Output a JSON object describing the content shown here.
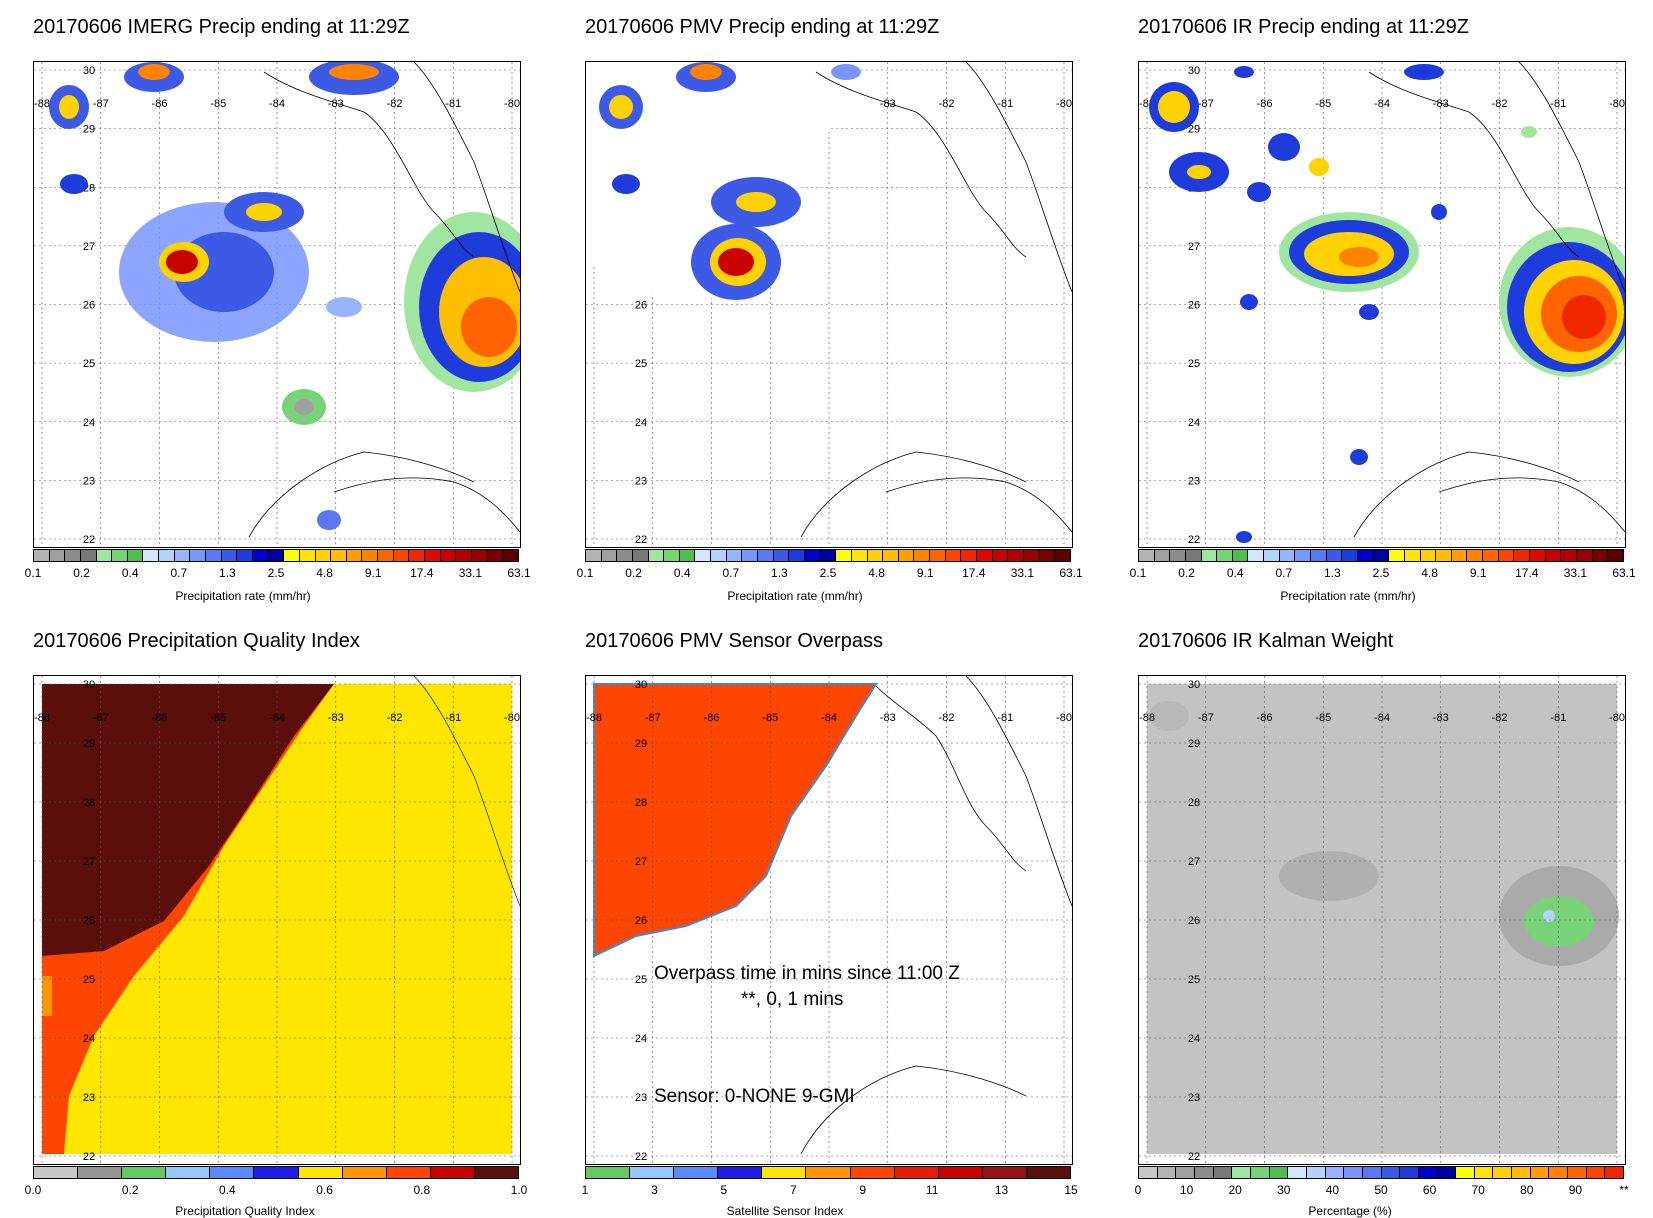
{
  "titles": {
    "p1": "20170606 IMERG Precip ending at 11:29Z",
    "p2": "20170606 PMV Precip ending at 11:29Z",
    "p3": "20170606 IR Precip ending at 11:29Z",
    "p4": "20170606 Precipitation Quality Index",
    "p5": "20170606 PMV Sensor Overpass",
    "p6": "20170606 IR Kalman Weight"
  },
  "map": {
    "lon_labels": [
      "-88",
      "-87",
      "-86",
      "-85",
      "-84",
      "-83",
      "-82",
      "-81",
      "-80"
    ],
    "lat_labels": [
      "30",
      "29",
      "28",
      "27",
      "26",
      "25",
      "24",
      "23",
      "22"
    ]
  },
  "precip_colorbar": {
    "label": "Precipitation rate (mm/hr)",
    "ticks": [
      "0.1",
      "0.2",
      "0.4",
      "0.7",
      "1.3",
      "2.5",
      "4.8",
      "9.1",
      "17.4",
      "33.1",
      "63.1"
    ],
    "colors": [
      "#b4b4b4",
      "#a0a0a0",
      "#8c8c8c",
      "#787878",
      "#a0e6a0",
      "#78d278",
      "#50be50",
      "#d2e6ff",
      "#b4d2ff",
      "#96b4ff",
      "#7896ff",
      "#5a78f0",
      "#3c5ae6",
      "#1e3cdc",
      "#0000c8",
      "#0000a0",
      "#ffff00",
      "#ffe600",
      "#ffd200",
      "#ffbe00",
      "#ffa000",
      "#ff8200",
      "#ff6400",
      "#ff4600",
      "#f02800",
      "#dc0a00",
      "#c80000",
      "#b40000",
      "#960000",
      "#780000",
      "#5a0000"
    ]
  },
  "quality_colorbar": {
    "label": "Precipitation Quality Index",
    "ticks": [
      "0.0",
      "0.2",
      "0.4",
      "0.6",
      "0.8",
      "1.0"
    ],
    "colors": [
      "#c8c8c8",
      "#969696",
      "#64c864",
      "#96c8ff",
      "#5a8cff",
      "#1e1ee6",
      "#ffe600",
      "#ff9600",
      "#ff4600",
      "#c80000",
      "#5a0f0a"
    ]
  },
  "sensor_colorbar": {
    "label": "Satellite Sensor Index",
    "ticks": [
      "1",
      "3",
      "5",
      "7",
      "9",
      "11",
      "13",
      "15"
    ],
    "colors": [
      "#64c864",
      "#96c8ff",
      "#5a8cff",
      "#1e1ee6",
      "#ffe600",
      "#ff9600",
      "#ff4600",
      "#e61e00",
      "#c80000",
      "#961414",
      "#5a0f0a"
    ]
  },
  "kalman_colorbar": {
    "label": "Percentage (%)",
    "ticks": [
      "0",
      "10",
      "20",
      "30",
      "40",
      "50",
      "60",
      "70",
      "80",
      "90",
      "**"
    ],
    "colors": [
      "#c8c8c8",
      "#b4b4b4",
      "#a0a0a0",
      "#8c8c8c",
      "#787878",
      "#a0e6a0",
      "#78d278",
      "#50be50",
      "#d2e6ff",
      "#b4d2ff",
      "#96b4ff",
      "#7896ff",
      "#5a78f0",
      "#3c5ae6",
      "#1e3cdc",
      "#0000c8",
      "#0000a0",
      "#ffff00",
      "#ffe600",
      "#ffd200",
      "#ffbe00",
      "#ffa000",
      "#ff8200",
      "#ff6400",
      "#ff4600",
      "#f02800"
    ]
  },
  "overpass": {
    "line1": "Overpass time in mins since 11:00 Z",
    "line2": "**, 0, 1 mins",
    "sensor": "Sensor:   0-NONE  9-GMI"
  },
  "colors": {
    "pqi_dark": "#5a0f0a",
    "pqi_red": "#ff4600",
    "pqi_yellow": "#ffe600",
    "overpass_red": "#ff4600",
    "kalman_gray": "#c3c3c3"
  }
}
